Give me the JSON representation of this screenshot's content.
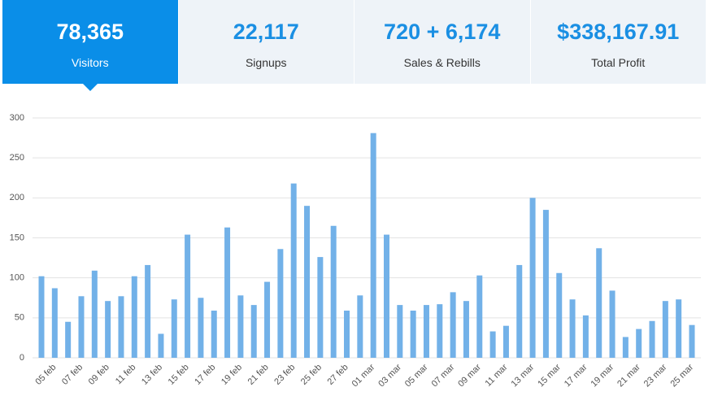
{
  "stats": [
    {
      "value": "78,365",
      "label": "Visitors"
    },
    {
      "value": "22,117",
      "label": "Signups"
    },
    {
      "value": "720 + 6,174",
      "label": "Sales & Rebills"
    },
    {
      "value": "$338,167.91",
      "label": "Total Profit"
    }
  ],
  "chart_data": {
    "type": "bar",
    "categories": [
      null,
      "05 feb",
      null,
      "07 feb",
      null,
      "09 feb",
      null,
      "11 feb",
      null,
      "13 feb",
      null,
      "15 feb",
      null,
      "17 feb",
      null,
      "19 feb",
      null,
      "21 feb",
      null,
      "23 feb",
      null,
      "25 feb",
      null,
      "27 feb",
      null,
      "01 mar",
      null,
      "03 mar",
      null,
      "05 mar",
      null,
      "07 mar",
      null,
      "09 mar",
      null,
      "11 mar",
      null,
      "13 mar",
      null,
      "15 mar",
      null,
      "17 mar",
      null,
      "19 mar",
      null,
      "21 mar",
      null,
      "23 mar",
      null,
      "25 mar"
    ],
    "values": [
      102,
      87,
      45,
      77,
      109,
      71,
      77,
      102,
      116,
      30,
      73,
      154,
      75,
      59,
      163,
      78,
      66,
      95,
      136,
      218,
      190,
      126,
      165,
      59,
      78,
      281,
      154,
      66,
      59,
      66,
      67,
      82,
      71,
      103,
      33,
      40,
      116,
      200,
      185,
      106,
      73,
      53,
      137,
      84,
      26,
      36,
      46,
      71,
      73,
      41
    ],
    "color": "#72b1e8",
    "ylim": [
      0,
      300
    ],
    "yticks": [
      0,
      50,
      100,
      150,
      200,
      250,
      300
    ],
    "grid": true
  }
}
